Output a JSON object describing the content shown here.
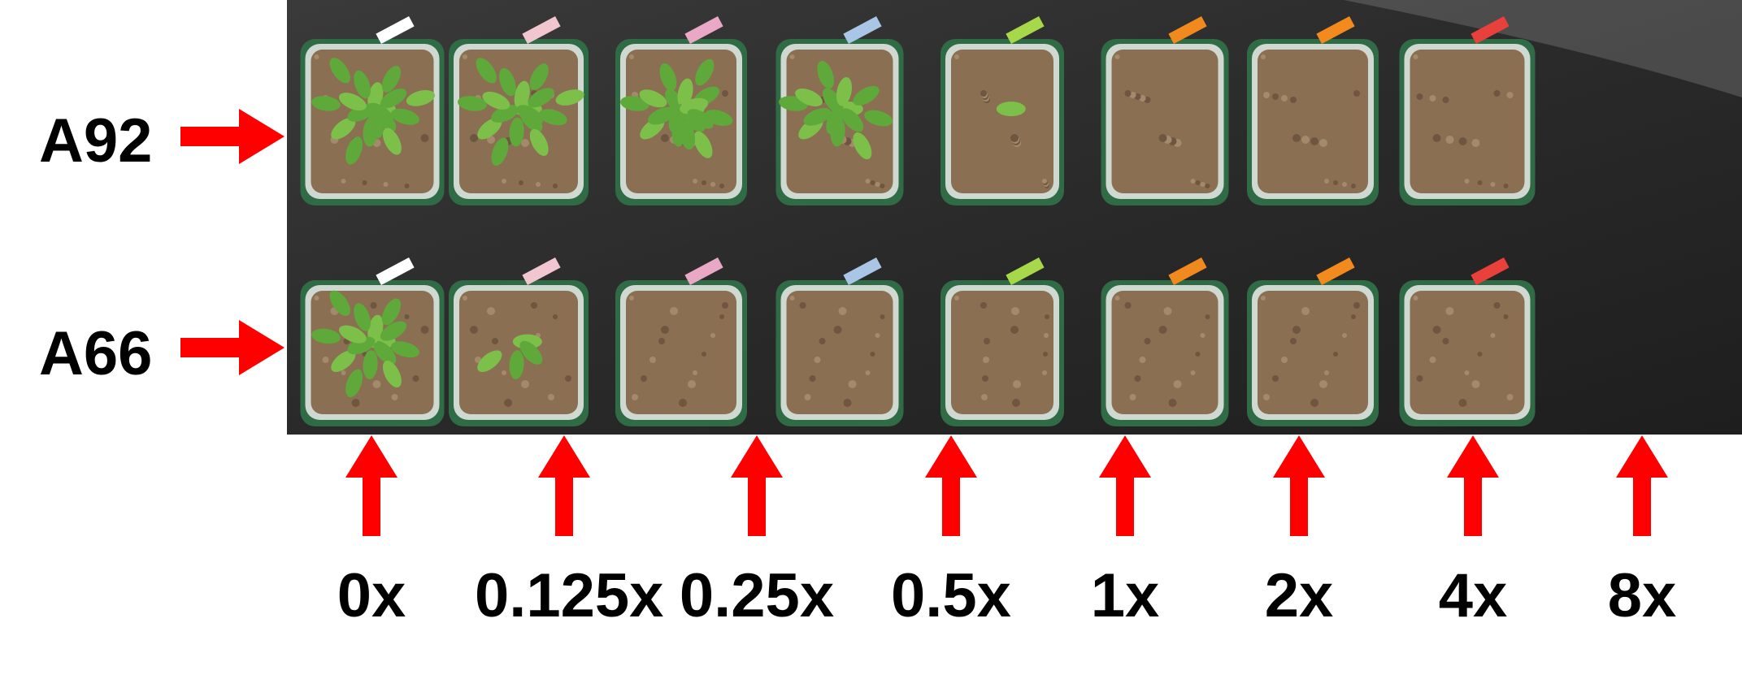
{
  "rows": [
    {
      "label": "A92",
      "plant_growth": [
        1.0,
        0.95,
        1.0,
        0.8,
        0.08,
        0.0,
        0.0,
        0.0
      ]
    },
    {
      "label": "A66",
      "plant_growth": [
        0.85,
        0.2,
        0.0,
        0.0,
        0.0,
        0.0,
        0.0,
        0.0
      ]
    }
  ],
  "doses": [
    "0x",
    "0.125x",
    "0.25x",
    "0.5x",
    "1x",
    "2x",
    "4x",
    "8x"
  ],
  "tag_colors": [
    "#ffffff",
    "#f2c6cf",
    "#e9a9c6",
    "#a9c6e6",
    "#a7d84a",
    "#f08a1e",
    "#f28a1e",
    "#e8403a"
  ],
  "colors": {
    "arrow": "#ff0000",
    "background_mat": "#2a2a2a",
    "soil": "#8b6f52",
    "leaf": "#5fa83a"
  }
}
